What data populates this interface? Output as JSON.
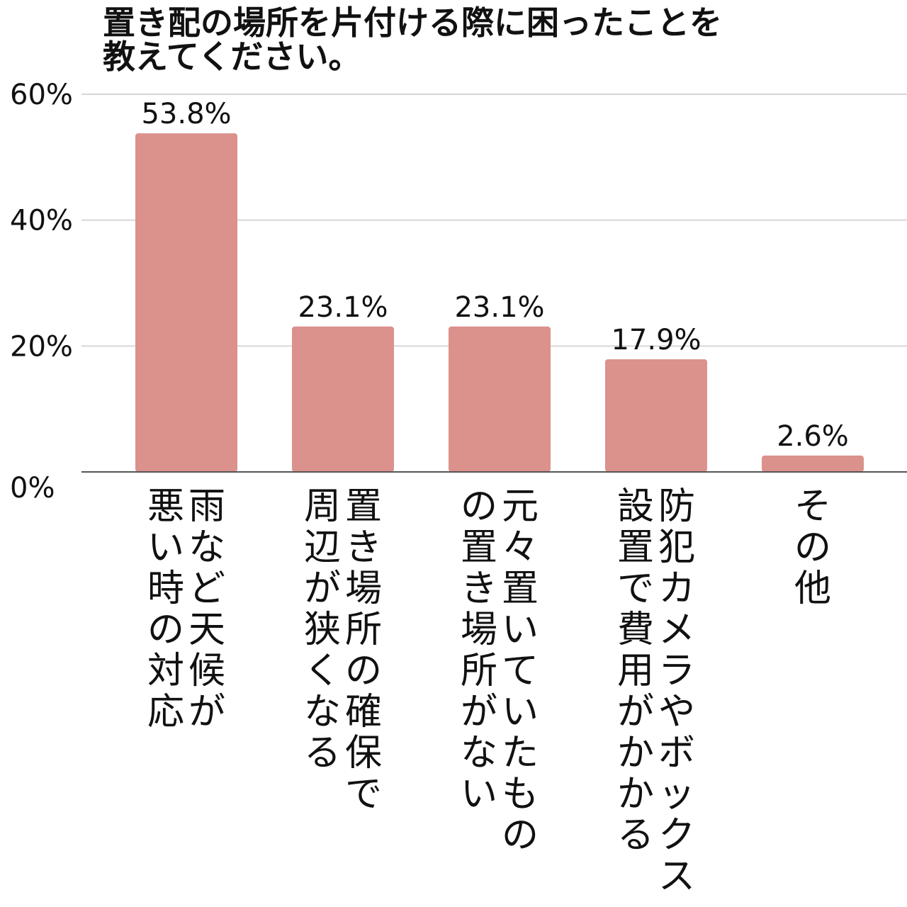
{
  "chart_data": {
    "type": "bar",
    "title": "置き配の場所を片付ける際に困ったことを\n教えてください。",
    "xlabel": "",
    "ylabel": "",
    "categories": [
      [
        "雨など天候が",
        "悪い時の対応"
      ],
      [
        "置き場所の確保で",
        "周辺が狭くなる"
      ],
      [
        "元々置いていたもの",
        "の置き場所がない"
      ],
      [
        "防犯カメラやボックス",
        "設置で費用がかかる"
      ],
      [
        "その他"
      ]
    ],
    "values": [
      53.8,
      23.1,
      23.1,
      17.9,
      2.6
    ],
    "value_labels": [
      "53.8%",
      "23.1%",
      "23.1%",
      "17.9%",
      "2.6%"
    ],
    "ylim": [
      0,
      60
    ],
    "yticks": [
      0,
      20,
      40,
      60
    ],
    "ytick_labels": [
      "0%",
      "20%",
      "40%",
      "60%"
    ],
    "grid": true,
    "legend": "none",
    "colors": {
      "bar": "#db918c",
      "grid": "#d6d6d6",
      "axis": "#555555",
      "text": "#111111"
    }
  }
}
